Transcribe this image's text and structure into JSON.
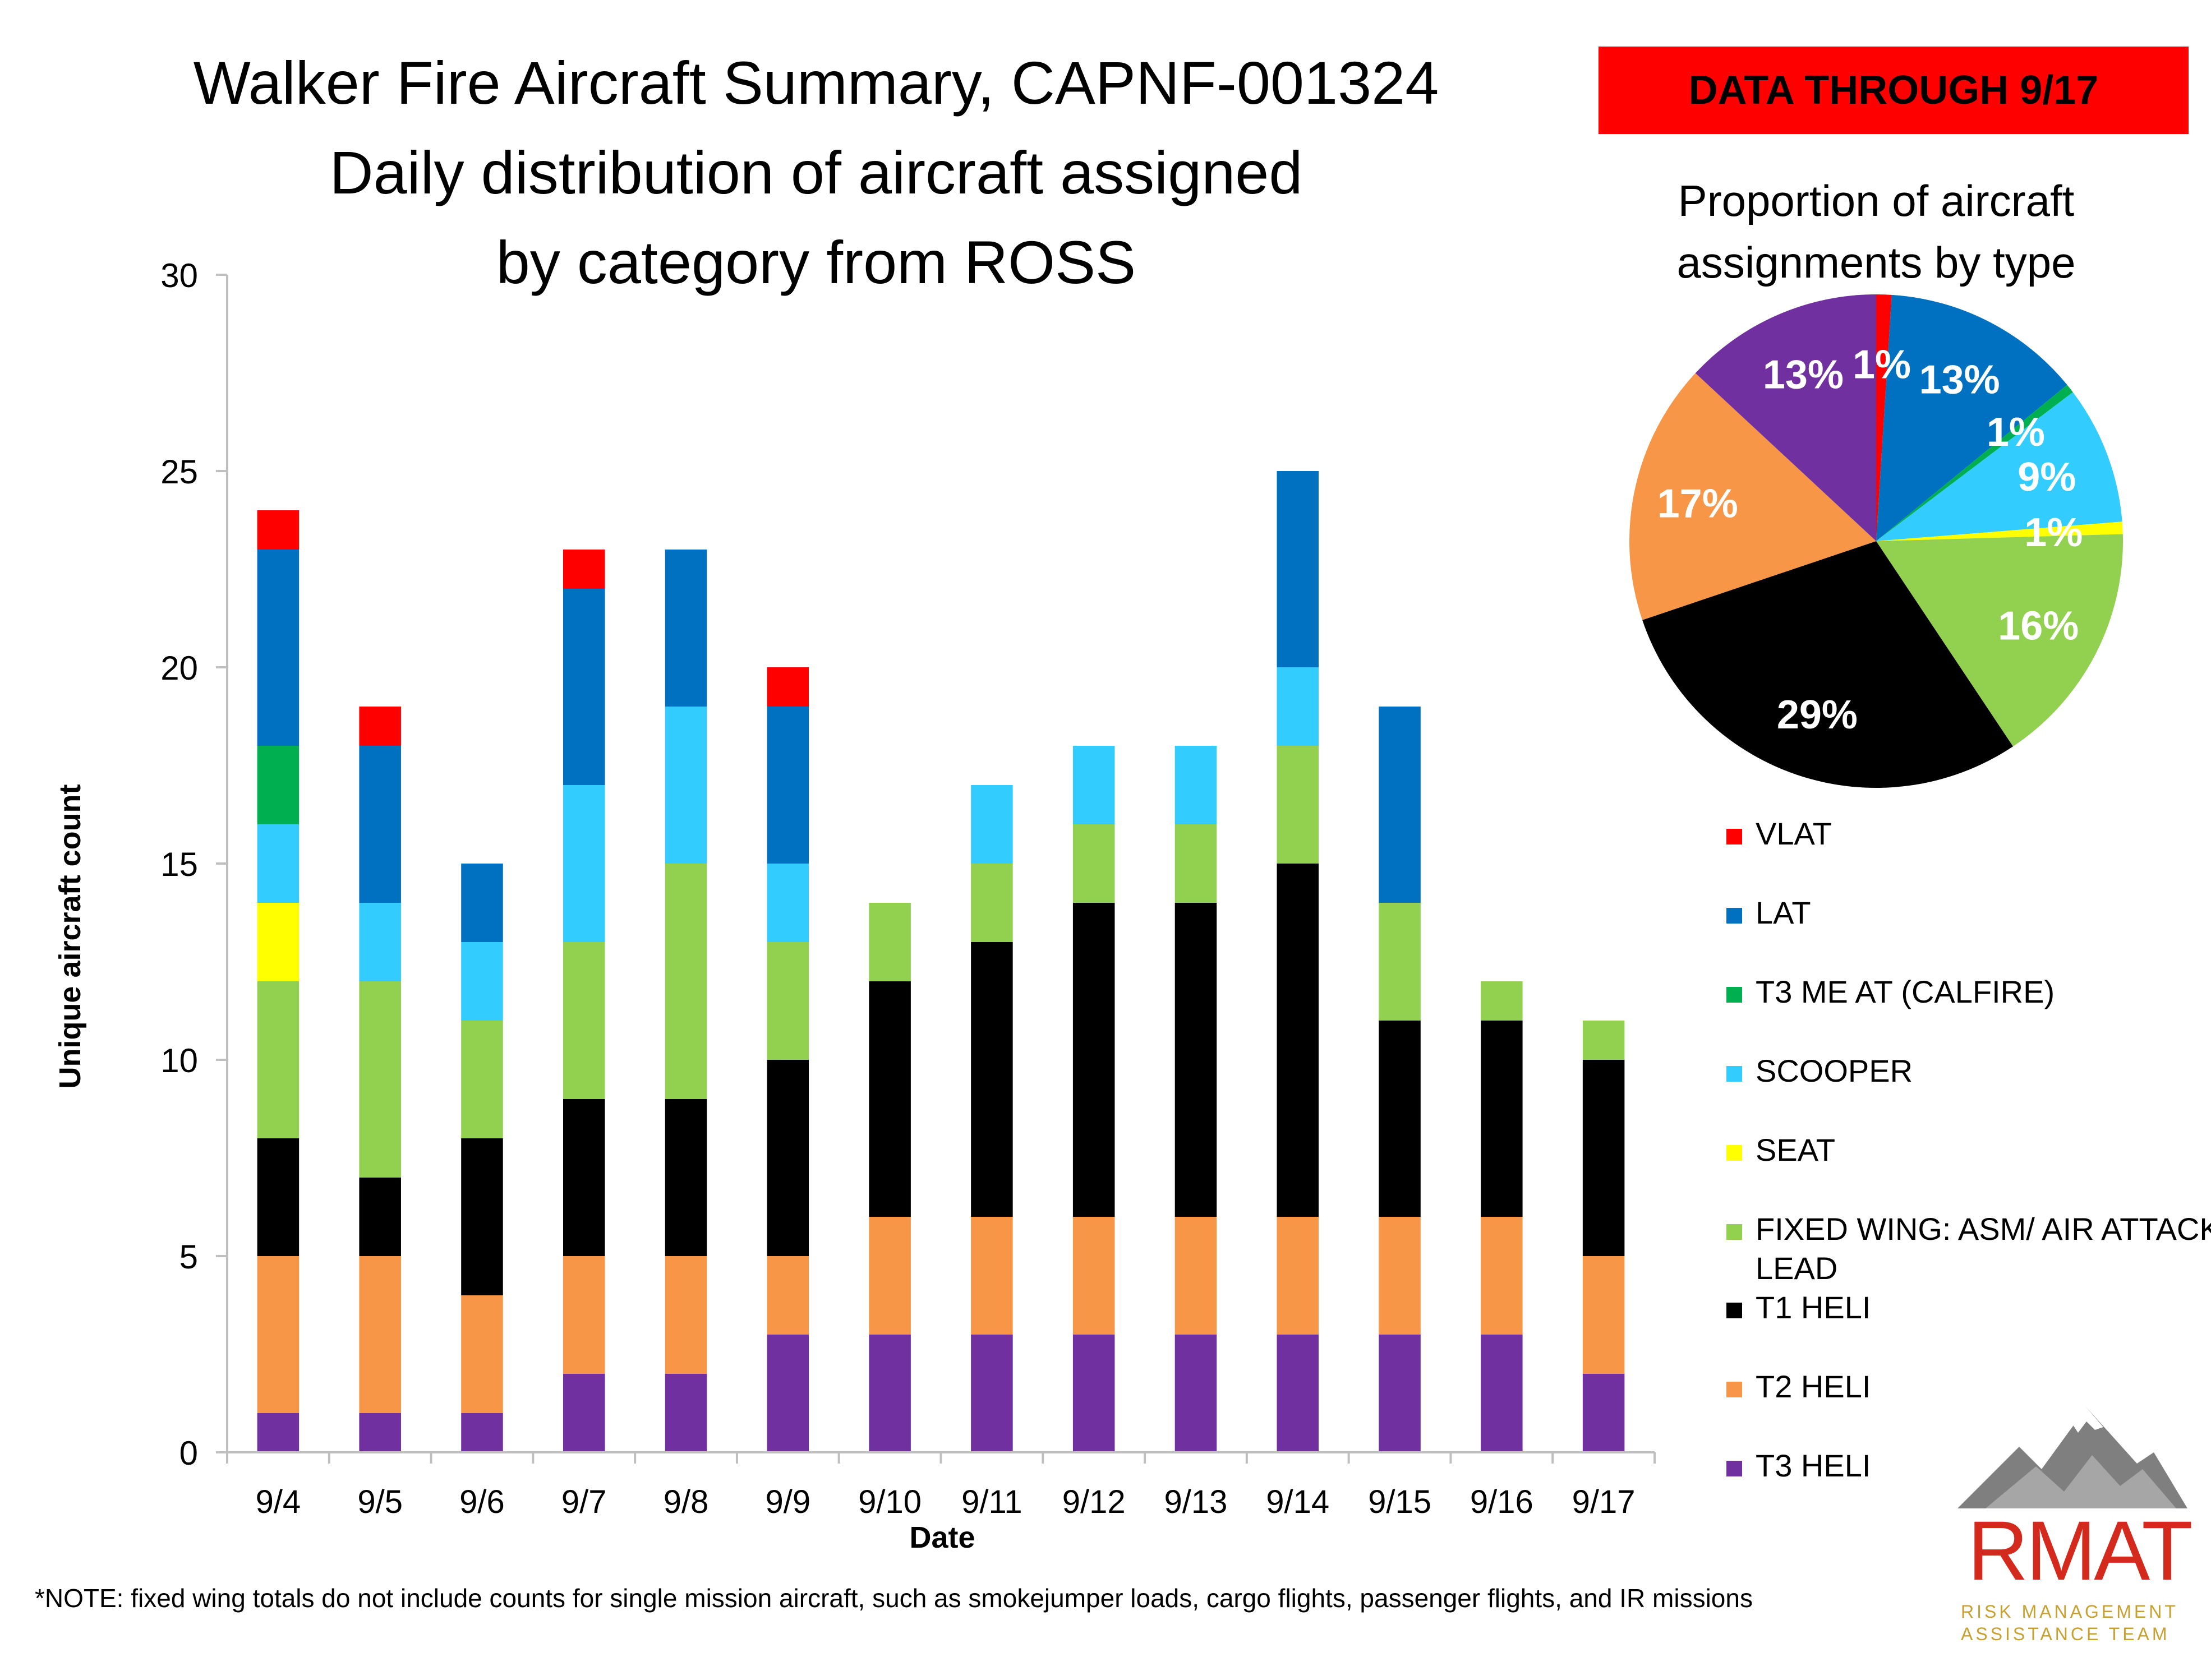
{
  "header": {
    "title_lines": [
      "Walker Fire Aircraft Summary, CAPNF-001324",
      "Daily distribution of aircraft assigned",
      "by category from ROSS"
    ],
    "badge": "DATA THROUGH 9/17"
  },
  "note": "*NOTE: fixed wing totals do not include counts for single mission aircraft, such as smokejumper loads, cargo flights, passenger flights, and IR missions",
  "logo": {
    "word": "RMAT",
    "line1": "RISK MANAGEMENT",
    "line2": "ASSISTANCE TEAM"
  },
  "colors": {
    "VLAT": "#ff0000",
    "LAT": "#0070c0",
    "T3 ME AT (CALFIRE)": "#00b050",
    "SCOOPER": "#33ccff",
    "SEAT": "#ffff00",
    "FIXED WING: ASM/ AIR ATTACK/ LEAD": "#92d050",
    "T1 HELI": "#000000",
    "T2 HELI": "#f79646",
    "T3 HELI": "#7030a0"
  },
  "chart_data": [
    {
      "type": "bar",
      "stacked": true,
      "title": "Walker Fire Aircraft Summary, CAPNF-001324 Daily distribution of aircraft assigned by category from ROSS",
      "xlabel": "Date",
      "ylabel": "Unique aircraft count",
      "ylim": [
        0,
        30
      ],
      "yticks": [
        0,
        5,
        10,
        15,
        20,
        25,
        30
      ],
      "categories": [
        "9/4",
        "9/5",
        "9/6",
        "9/7",
        "9/8",
        "9/9",
        "9/10",
        "9/11",
        "9/12",
        "9/13",
        "9/14",
        "9/15",
        "9/16",
        "9/17"
      ],
      "series": [
        {
          "name": "T3 HELI",
          "values": [
            1,
            1,
            1,
            2,
            2,
            3,
            3,
            3,
            3,
            3,
            3,
            3,
            3,
            2
          ]
        },
        {
          "name": "T2 HELI",
          "values": [
            4,
            4,
            3,
            3,
            3,
            2,
            3,
            3,
            3,
            3,
            3,
            3,
            3,
            3
          ]
        },
        {
          "name": "T1 HELI",
          "values": [
            3,
            2,
            4,
            4,
            4,
            5,
            6,
            7,
            8,
            8,
            9,
            5,
            5,
            5
          ]
        },
        {
          "name": "FIXED WING: ASM/ AIR ATTACK/ LEAD",
          "values": [
            4,
            5,
            3,
            4,
            6,
            3,
            2,
            2,
            2,
            2,
            3,
            3,
            1,
            1
          ]
        },
        {
          "name": "SEAT",
          "values": [
            2,
            0,
            0,
            0,
            0,
            0,
            0,
            0,
            0,
            0,
            0,
            0,
            0,
            0
          ]
        },
        {
          "name": "SCOOPER",
          "values": [
            2,
            2,
            2,
            4,
            4,
            2,
            0,
            2,
            2,
            2,
            2,
            0,
            0,
            0
          ]
        },
        {
          "name": "T3 ME AT (CALFIRE)",
          "values": [
            2,
            0,
            0,
            0,
            0,
            0,
            0,
            0,
            0,
            0,
            0,
            0,
            0,
            0
          ]
        },
        {
          "name": "LAT",
          "values": [
            5,
            4,
            2,
            5,
            4,
            4,
            0,
            0,
            0,
            0,
            5,
            5,
            0,
            0
          ]
        },
        {
          "name": "VLAT",
          "values": [
            1,
            1,
            0,
            1,
            0,
            1,
            0,
            0,
            0,
            0,
            0,
            0,
            0,
            0
          ]
        }
      ],
      "legend": [
        "VLAT",
        "LAT",
        "T3 ME AT (CALFIRE)",
        "SCOOPER",
        "SEAT",
        "FIXED WING: ASM/ AIR ATTACK/ LEAD",
        "T1 HELI",
        "T2 HELI",
        "T3 HELI"
      ],
      "legend_position": "right"
    },
    {
      "type": "pie",
      "title": "Proportion of aircraft assignments by type",
      "slices": [
        {
          "name": "VLAT",
          "value": 1,
          "label": "1%"
        },
        {
          "name": "LAT",
          "value": 13,
          "label": "13%"
        },
        {
          "name": "T3 ME AT (CALFIRE)",
          "value": 0.6,
          "label": "1%"
        },
        {
          "name": "SCOOPER",
          "value": 9,
          "label": "9%"
        },
        {
          "name": "SEAT",
          "value": 0.8,
          "label": "1%"
        },
        {
          "name": "FIXED WING: ASM/ AIR ATTACK/ LEAD",
          "value": 16,
          "label": "16%"
        },
        {
          "name": "T1 HELI",
          "value": 29,
          "label": "29%"
        },
        {
          "name": "T2 HELI",
          "value": 17,
          "label": "17%"
        },
        {
          "name": "T3 HELI",
          "value": 13,
          "label": "13%"
        }
      ]
    }
  ]
}
